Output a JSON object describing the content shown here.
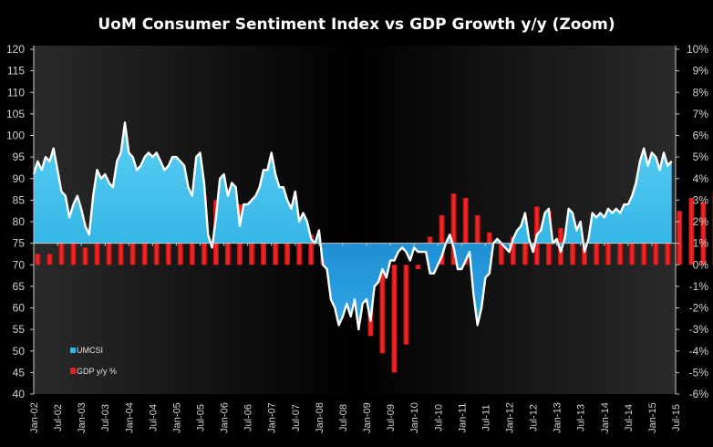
{
  "chart_data": {
    "type": "line",
    "title": "UoM Consumer Sentiment Index vs GDP Growth y/y (Zoom)",
    "xlabel": "",
    "ylabel": "",
    "y_left": {
      "min": 40,
      "max": 120,
      "step": 5,
      "baseline": 75
    },
    "y_right": {
      "min": -6,
      "max": 10,
      "step": 1,
      "suffix": "%"
    },
    "left_ticks": [
      "120",
      "115",
      "110",
      "105",
      "100",
      "95",
      "90",
      "85",
      "80",
      "75",
      "70",
      "65",
      "60",
      "55",
      "50",
      "45",
      "40"
    ],
    "right_ticks": [
      "10%",
      "9%",
      "8%",
      "7%",
      "6%",
      "5%",
      "4%",
      "3%",
      "2%",
      "1%",
      "0%",
      "-1%",
      "-2%",
      "-3%",
      "-4%",
      "-5%",
      "-6%"
    ],
    "x_labels": [
      "Jan-02",
      "Jul-02",
      "Jan-03",
      "Jul-03",
      "Jan-04",
      "Jul-04",
      "Jan-05",
      "Jul-05",
      "Jan-06",
      "Jul-06",
      "Jan-07",
      "Jul-07",
      "Jan-08",
      "Jul-08",
      "Jan-09",
      "Jul-09",
      "Jan-10",
      "Jul-10",
      "Jan-11",
      "Jul-11",
      "Jan-12",
      "Jul-12",
      "Jan-13",
      "Jul-13",
      "Jan-14",
      "Jul-14",
      "Jan-15",
      "Jul-15"
    ],
    "series": [
      {
        "name": "UMCSI",
        "type": "area",
        "color": "#29b6f6",
        "start": "Jan-02",
        "frequency": "monthly",
        "anchors": [
          [
            0,
            91
          ],
          [
            1,
            94
          ],
          [
            2,
            92
          ],
          [
            3,
            95
          ],
          [
            4,
            94
          ],
          [
            5,
            97
          ],
          [
            6,
            92
          ],
          [
            7,
            87
          ],
          [
            8,
            86
          ],
          [
            9,
            81
          ],
          [
            10,
            84
          ],
          [
            11,
            86
          ],
          [
            12,
            83
          ],
          [
            13,
            79
          ],
          [
            14,
            77
          ],
          [
            15,
            86
          ],
          [
            16,
            92
          ],
          [
            17,
            90
          ],
          [
            18,
            91
          ],
          [
            19,
            89
          ],
          [
            20,
            88
          ],
          [
            21,
            94
          ],
          [
            22,
            96
          ],
          [
            23,
            103
          ],
          [
            24,
            96
          ],
          [
            25,
            95
          ],
          [
            26,
            92
          ],
          [
            27,
            93
          ],
          [
            28,
            95
          ],
          [
            29,
            96
          ],
          [
            30,
            95
          ],
          [
            31,
            96
          ],
          [
            32,
            94
          ],
          [
            33,
            92
          ],
          [
            34,
            93
          ],
          [
            35,
            95
          ],
          [
            36,
            95
          ],
          [
            37,
            94
          ],
          [
            38,
            93
          ],
          [
            39,
            88
          ],
          [
            40,
            86
          ],
          [
            41,
            95
          ],
          [
            42,
            96
          ],
          [
            43,
            89
          ],
          [
            44,
            77
          ],
          [
            45,
            74
          ],
          [
            46,
            81
          ],
          [
            47,
            90
          ],
          [
            48,
            91
          ],
          [
            49,
            86
          ],
          [
            50,
            89
          ],
          [
            51,
            88
          ],
          [
            52,
            79
          ],
          [
            53,
            84
          ],
          [
            54,
            84
          ],
          [
            55,
            85
          ],
          [
            56,
            86
          ],
          [
            57,
            88
          ],
          [
            58,
            92
          ],
          [
            59,
            92
          ],
          [
            60,
            96
          ],
          [
            61,
            91
          ],
          [
            62,
            88
          ],
          [
            63,
            88
          ],
          [
            64,
            85
          ],
          [
            65,
            83
          ],
          [
            66,
            87
          ],
          [
            67,
            80
          ],
          [
            68,
            82
          ],
          [
            69,
            80
          ],
          [
            70,
            76
          ],
          [
            71,
            75
          ],
          [
            72,
            78
          ],
          [
            73,
            70
          ],
          [
            74,
            69
          ],
          [
            75,
            62
          ],
          [
            76,
            60
          ],
          [
            77,
            56
          ],
          [
            78,
            58
          ],
          [
            79,
            61
          ],
          [
            80,
            58
          ],
          [
            81,
            62
          ],
          [
            82,
            55
          ],
          [
            83,
            61
          ],
          [
            84,
            62
          ],
          [
            85,
            57
          ],
          [
            86,
            65
          ],
          [
            87,
            66
          ],
          [
            88,
            69
          ],
          [
            89,
            67
          ],
          [
            90,
            71
          ],
          [
            91,
            71
          ],
          [
            92,
            73
          ],
          [
            93,
            74
          ],
          [
            94,
            73
          ],
          [
            95,
            71
          ],
          [
            96,
            74
          ],
          [
            97,
            73
          ],
          [
            98,
            73
          ],
          [
            99,
            73
          ],
          [
            100,
            68
          ],
          [
            101,
            68
          ],
          [
            102,
            70
          ],
          [
            103,
            72
          ],
          [
            104,
            75
          ],
          [
            105,
            77
          ],
          [
            106,
            74
          ],
          [
            107,
            69
          ],
          [
            108,
            69
          ],
          [
            109,
            71
          ],
          [
            110,
            73
          ],
          [
            111,
            63
          ],
          [
            112,
            56
          ],
          [
            113,
            60
          ],
          [
            114,
            67
          ],
          [
            115,
            68
          ],
          [
            116,
            75
          ],
          [
            117,
            76
          ],
          [
            118,
            75
          ],
          [
            119,
            74
          ],
          [
            120,
            73
          ],
          [
            121,
            76
          ],
          [
            122,
            78
          ],
          [
            123,
            79
          ],
          [
            124,
            82
          ],
          [
            125,
            76
          ],
          [
            126,
            73
          ],
          [
            127,
            77
          ],
          [
            128,
            78
          ],
          [
            129,
            82
          ],
          [
            130,
            83
          ],
          [
            131,
            75
          ],
          [
            132,
            76
          ],
          [
            133,
            73
          ],
          [
            134,
            76
          ],
          [
            135,
            83
          ],
          [
            136,
            82
          ],
          [
            137,
            78
          ],
          [
            138,
            80
          ],
          [
            139,
            73
          ],
          [
            140,
            76
          ],
          [
            141,
            82
          ],
          [
            142,
            81
          ],
          [
            143,
            82
          ],
          [
            144,
            81
          ],
          [
            145,
            83
          ],
          [
            146,
            82
          ],
          [
            147,
            83
          ],
          [
            148,
            82
          ],
          [
            149,
            84
          ],
          [
            150,
            84
          ],
          [
            151,
            86
          ],
          [
            152,
            89
          ],
          [
            153,
            94
          ],
          [
            154,
            97
          ],
          [
            155,
            93
          ],
          [
            156,
            96
          ],
          [
            157,
            95
          ],
          [
            158,
            92
          ],
          [
            159,
            96
          ],
          [
            160,
            93
          ],
          [
            161,
            94
          ]
        ]
      },
      {
        "name": "GDP y/y %",
        "type": "bar",
        "color": "#e02020",
        "start": "Jan-02",
        "frequency": "quarterly",
        "values": [
          0.5,
          0.5,
          1.8,
          1.1,
          0.8,
          1.1,
          3.5,
          4.3,
          4.3,
          3.8,
          3.8,
          3.0,
          3.5,
          3.2,
          3.2,
          3.0,
          3.5,
          2.8,
          2.4,
          2.0,
          1.6,
          1.1,
          2.1,
          1.4,
          0.8,
          0.3,
          -0.2,
          -1.5,
          -3.3,
          -4.1,
          -5.0,
          -3.7,
          -0.2,
          1.3,
          2.3,
          3.3,
          3.1,
          2.3,
          1.5,
          1.0,
          1.3,
          2.0,
          2.7,
          2.5,
          1.7,
          1.1,
          0.8,
          1.5,
          1.6,
          1.8,
          1.5,
          3.3,
          2.2,
          2.2,
          2.5,
          3.1,
          2.9,
          3.4
        ]
      }
    ],
    "legend": [
      {
        "label": "UMCSI",
        "color": "#29b6f6"
      },
      {
        "label": "GDP y/y %",
        "color": "#e02020"
      }
    ]
  }
}
